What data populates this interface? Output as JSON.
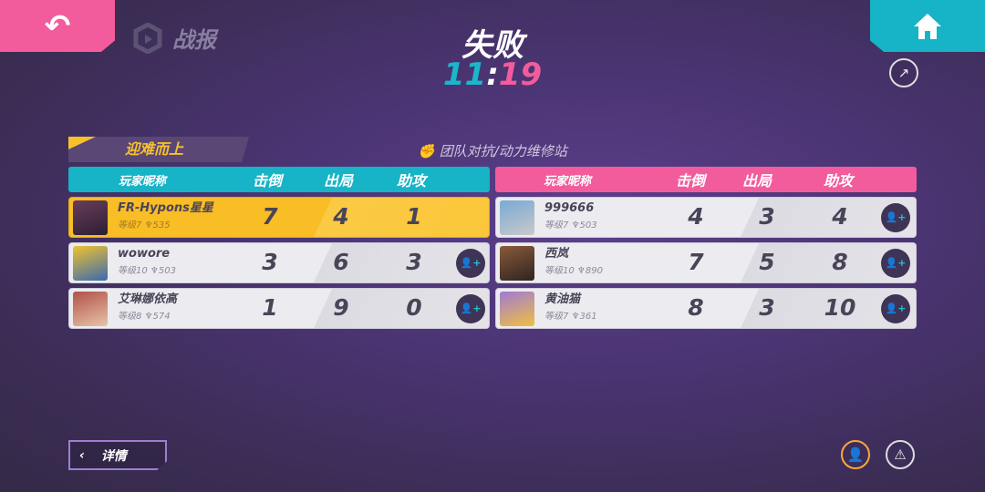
{
  "nav": {
    "back_icon": "undo-arrow-icon",
    "home_icon": "home-icon",
    "report_label": "战报",
    "share_icon": "share-icon"
  },
  "result": {
    "title": "失败",
    "time_min": "11",
    "time_sep": ":",
    "time_sec": "19"
  },
  "section_tag": "迎难而上",
  "mode": "团队对抗/动力维修站",
  "columns": {
    "name": "玩家昵称",
    "kills": "击倒",
    "deaths": "出局",
    "assists": "助攻"
  },
  "colors": {
    "blue_team": "#17b3c6",
    "pink_team": "#f25c9c",
    "highlight": "#f9bd25"
  },
  "blue_team": [
    {
      "name": "FR-Hypons星星",
      "level": "等级7",
      "score": "535",
      "kills": "7",
      "deaths": "4",
      "assists": "1",
      "self": true
    },
    {
      "name": "wowore",
      "level": "等级10",
      "score": "503",
      "kills": "3",
      "deaths": "6",
      "assists": "3"
    },
    {
      "name": "艾琳娜依高",
      "level": "等级8",
      "score": "574",
      "kills": "1",
      "deaths": "9",
      "assists": "0"
    }
  ],
  "pink_team": [
    {
      "name": "999666",
      "level": "等级7",
      "score": "503",
      "kills": "4",
      "deaths": "3",
      "assists": "4"
    },
    {
      "name": "西岚",
      "level": "等级10",
      "score": "890",
      "kills": "7",
      "deaths": "5",
      "assists": "8"
    },
    {
      "name": "黄油猫",
      "level": "等级7",
      "score": "361",
      "kills": "8",
      "deaths": "3",
      "assists": "10"
    }
  ],
  "footer": {
    "details_label": "详情",
    "add_all_icon": "add-friend-icon",
    "report_icon": "warning-icon"
  }
}
